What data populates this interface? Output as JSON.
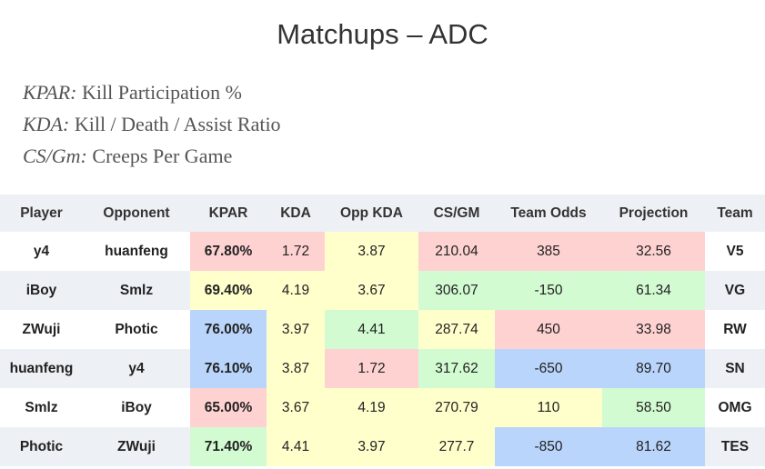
{
  "title": "Matchups – ADC",
  "definitions": [
    {
      "term": "KPAR:",
      "text": "Kill Participation %"
    },
    {
      "term": "KDA:",
      "text": "Kill / Death / Assist Ratio"
    },
    {
      "term": "CS/Gm:",
      "text": "Creeps Per Game"
    }
  ],
  "table": {
    "headers": [
      "Player",
      "Opponent",
      "KPAR",
      "KDA",
      "Opp KDA",
      "CS/GM",
      "Team Odds",
      "Projection",
      "Team"
    ],
    "rows": [
      {
        "player": "y4",
        "opponent": "huanfeng",
        "kpar": "67.80%",
        "kda": "1.72",
        "opp_kda": "3.87",
        "cs_gm": "210.04",
        "team_odds": "385",
        "projection": "32.56",
        "team": "V5"
      },
      {
        "player": "iBoy",
        "opponent": "Smlz",
        "kpar": "69.40%",
        "kda": "4.19",
        "opp_kda": "3.67",
        "cs_gm": "306.07",
        "team_odds": "-150",
        "projection": "61.34",
        "team": "VG"
      },
      {
        "player": "ZWuji",
        "opponent": "Photic",
        "kpar": "76.00%",
        "kda": "3.97",
        "opp_kda": "4.41",
        "cs_gm": "287.74",
        "team_odds": "450",
        "projection": "33.98",
        "team": "RW"
      },
      {
        "player": "huanfeng",
        "opponent": "y4",
        "kpar": "76.10%",
        "kda": "3.87",
        "opp_kda": "1.72",
        "cs_gm": "317.62",
        "team_odds": "-650",
        "projection": "89.70",
        "team": "SN"
      },
      {
        "player": "Smlz",
        "opponent": "iBoy",
        "kpar": "65.00%",
        "kda": "3.67",
        "opp_kda": "4.19",
        "cs_gm": "270.79",
        "team_odds": "110",
        "projection": "58.50",
        "team": "OMG"
      },
      {
        "player": "Photic",
        "opponent": "ZWuji",
        "kpar": "71.40%",
        "kda": "4.41",
        "opp_kda": "3.97",
        "cs_gm": "277.7",
        "team_odds": "-850",
        "projection": "81.62",
        "team": "TES"
      }
    ]
  },
  "colors": {
    "header_bg": "#edf0f4",
    "red": "#ffd2d2",
    "yellow": "#ffffcc",
    "green": "#d2fbd2",
    "blue": "#b9d5fb"
  }
}
